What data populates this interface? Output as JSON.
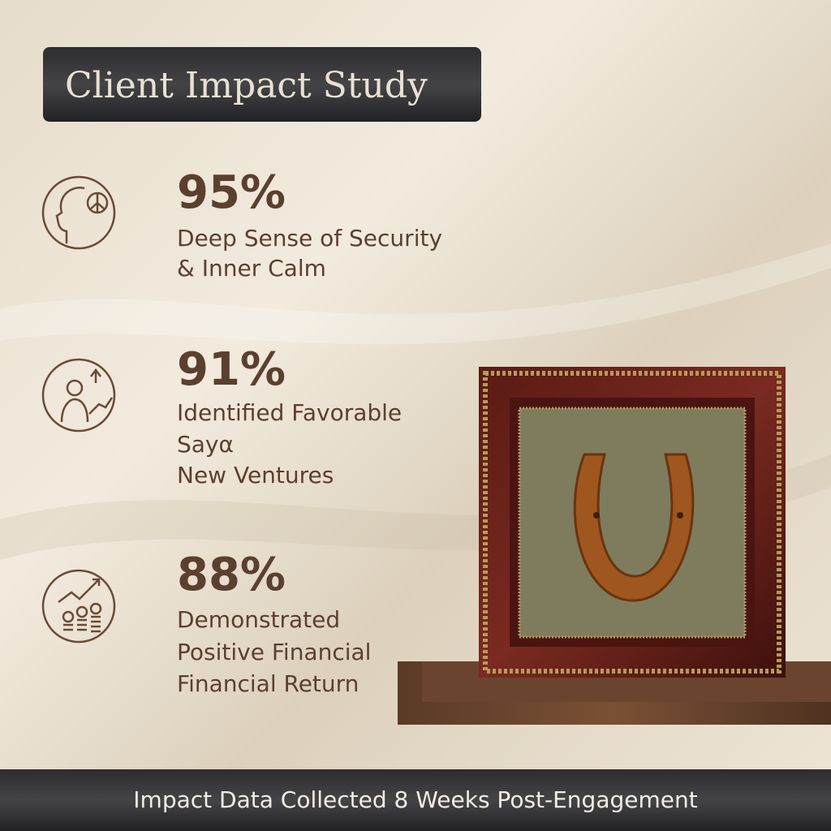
{
  "header": {
    "title": "Client Impact Study"
  },
  "stats": [
    {
      "value": "95%",
      "lines": [
        "Deep Sense of Security",
        "& Inner Calm"
      ]
    },
    {
      "value": "91%",
      "lines": [
        "Identified Favorable",
        "Sayα",
        "New Ventures"
      ]
    },
    {
      "value": "88%",
      "lines": [
        "Demonstrated",
        "Positive Financial",
        "Financial Return"
      ]
    }
  ],
  "footer": {
    "text": "Impact Data Collected 8 Weeks Post-Engagement"
  }
}
